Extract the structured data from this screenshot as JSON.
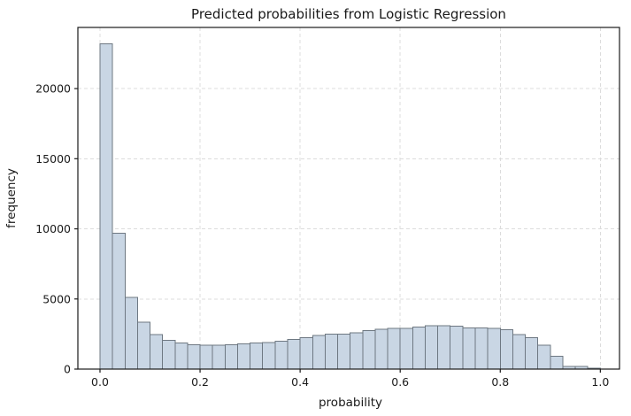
{
  "chart_data": {
    "type": "bar",
    "subtype": "histogram",
    "title": "Predicted probabilities from Logistic Regression",
    "xlabel": "probability",
    "ylabel": "frequency",
    "bin_start": 0.0,
    "bin_width": 0.025,
    "values": [
      23200,
      9700,
      5100,
      3350,
      2450,
      2050,
      1850,
      1750,
      1700,
      1700,
      1750,
      1800,
      1850,
      1900,
      2000,
      2100,
      2250,
      2400,
      2500,
      2500,
      2600,
      2750,
      2850,
      2900,
      2900,
      3000,
      3100,
      3100,
      3050,
      2950,
      2950,
      2900,
      2800,
      2450,
      2250,
      1700,
      900,
      200,
      200,
      50
    ],
    "x_ticks": [
      0.0,
      0.2,
      0.4,
      0.6,
      0.8,
      1.0
    ],
    "x_tick_labels": [
      "0.0",
      "0.2",
      "0.4",
      "0.6",
      "0.8",
      "1.0"
    ],
    "y_ticks": [
      0,
      5000,
      10000,
      15000,
      20000
    ],
    "y_tick_labels": [
      "0",
      "5000",
      "10000",
      "15000",
      "20000"
    ],
    "xlim": [
      -0.0442,
      1.0383
    ],
    "ylim": [
      0,
      24360
    ],
    "grid": true,
    "grid_style": "dashed",
    "legend": "none",
    "colors": {
      "bar_fill": "#c9d6e4",
      "bar_edge": "#6e7882",
      "grid": "#dcdcdc",
      "spine": "#1a1a1a",
      "background": "#ffffff"
    }
  }
}
